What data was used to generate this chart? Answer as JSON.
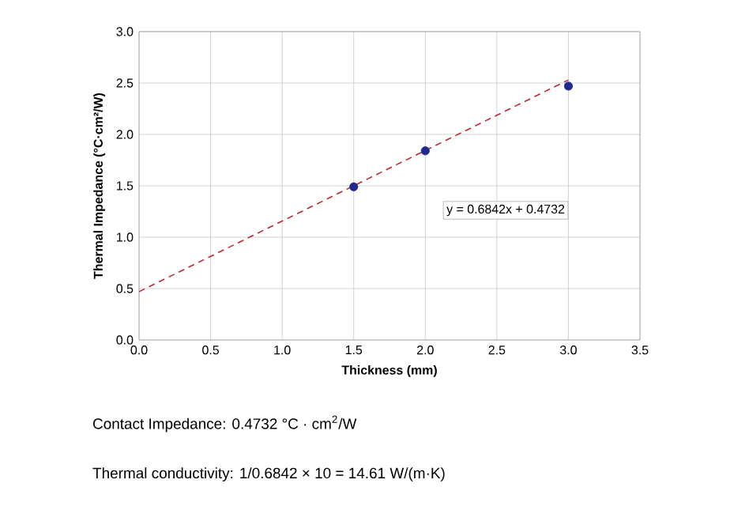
{
  "chart_data": {
    "type": "scatter",
    "xlabel": "Thickness (mm)",
    "ylabel": "Thermal Impedance (°C·cm²/W)",
    "xlim": [
      0,
      3.5
    ],
    "ylim": [
      0,
      3.0
    ],
    "xticks": [
      {
        "value": 0,
        "label": "0.0"
      },
      {
        "value": 0.5,
        "label": "0.5"
      },
      {
        "value": 1,
        "label": "1.0"
      },
      {
        "value": 1.5,
        "label": "1.5"
      },
      {
        "value": 2,
        "label": "2.0"
      },
      {
        "value": 2.5,
        "label": "2.5"
      },
      {
        "value": 3,
        "label": "3.0"
      },
      {
        "value": 3.5,
        "label": "3.5"
      }
    ],
    "yticks": [
      {
        "value": 0,
        "label": "0.0"
      },
      {
        "value": 0.5,
        "label": "0.5"
      },
      {
        "value": 1,
        "label": "1.0"
      },
      {
        "value": 1.5,
        "label": "1.5"
      },
      {
        "value": 2,
        "label": "2.0"
      },
      {
        "value": 2.5,
        "label": "2.5"
      },
      {
        "value": 3,
        "label": "3.0"
      }
    ],
    "grid": true,
    "series": [
      {
        "color": "#1f2a8a",
        "marker": "circle",
        "x": [
          1.5,
          2.0,
          3.0
        ],
        "values": [
          1.49,
          1.84,
          2.47
        ]
      },
      {
        "type": "line",
        "color": "#c0282d",
        "marker": "none",
        "line_style": "dashed",
        "x": [
          0,
          3.0
        ],
        "values": [
          0.47,
          2.53
        ]
      }
    ],
    "annotations": [
      "y = 0.6842x + 0.4732",
      "Contact Impedance: 0.4732 °C · cm$^{2}$/W",
      "Thermal conductivity: 1/0.6842 × 10 = 14.61 W/(m·K)"
    ]
  }
}
